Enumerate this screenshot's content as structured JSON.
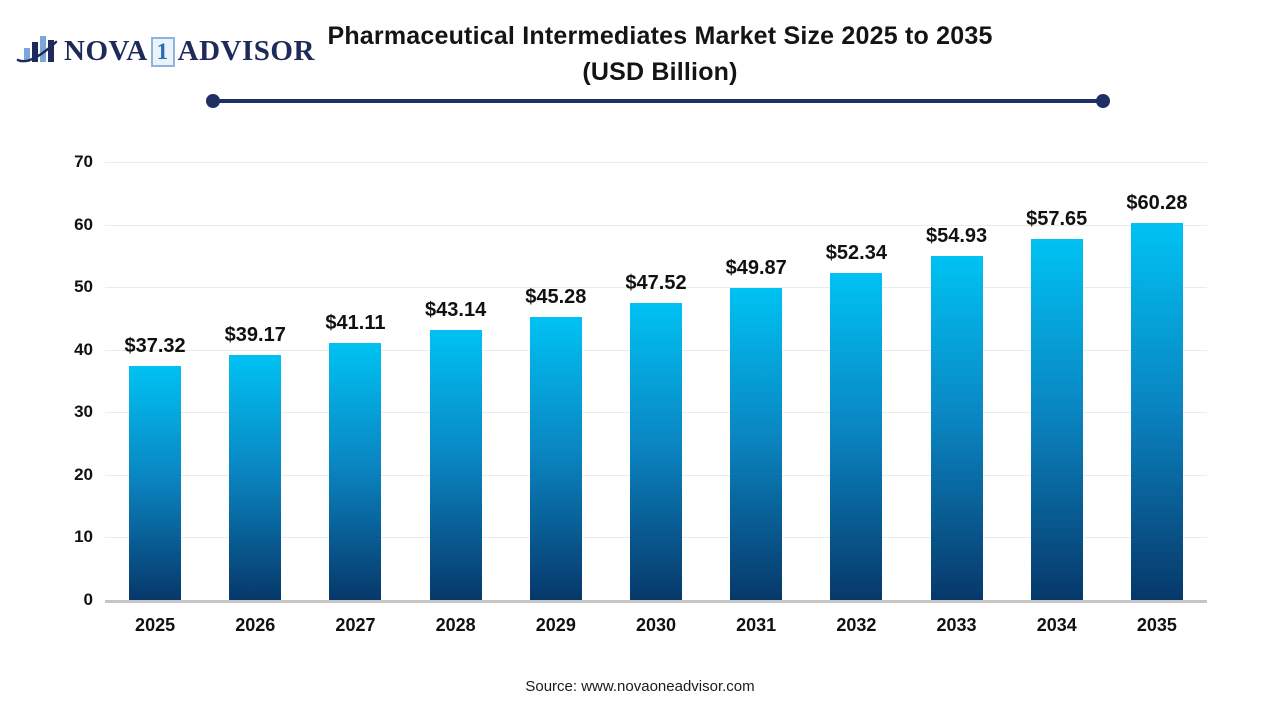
{
  "logo": {
    "part1": "NOVA",
    "badge": "1",
    "part2": "ADVISOR"
  },
  "header": {
    "title_line1": "Pharmaceutical Intermediates Market Size 2025 to 2035",
    "title_line2": "(USD Billion)"
  },
  "footer": {
    "source": "Source: www.novaoneadvisor.com"
  },
  "colors": {
    "bar_gradient_top": "#00c2f3",
    "bar_gradient_bottom": "#07386a",
    "title_underline": "#1e2f63",
    "logo_navy": "#1e2a5a",
    "logo_blue": "#2a6cb3",
    "gridline": "#ebebef",
    "axis_baseline": "#c6c6c6",
    "text": "#111111"
  },
  "chart_data": {
    "type": "bar",
    "title": "Pharmaceutical Intermediates Market Size 2025 to 2035 (USD Billion)",
    "xlabel": "",
    "ylabel": "",
    "categories": [
      "2025",
      "2026",
      "2027",
      "2028",
      "2029",
      "2030",
      "2031",
      "2032",
      "2033",
      "2034",
      "2035"
    ],
    "values": [
      37.32,
      39.17,
      41.11,
      43.14,
      45.28,
      47.52,
      49.87,
      52.34,
      54.93,
      57.65,
      60.28
    ],
    "data_labels": [
      "$37.32",
      "$39.17",
      "$41.11",
      "$43.14",
      "$45.28",
      "$47.52",
      "$49.87",
      "$52.34",
      "$54.93",
      "$57.65",
      "$60.28"
    ],
    "ylim": [
      0,
      70
    ],
    "yticks": [
      0,
      10,
      20,
      30,
      40,
      50,
      60,
      70
    ],
    "grid": true,
    "legend": "none"
  }
}
